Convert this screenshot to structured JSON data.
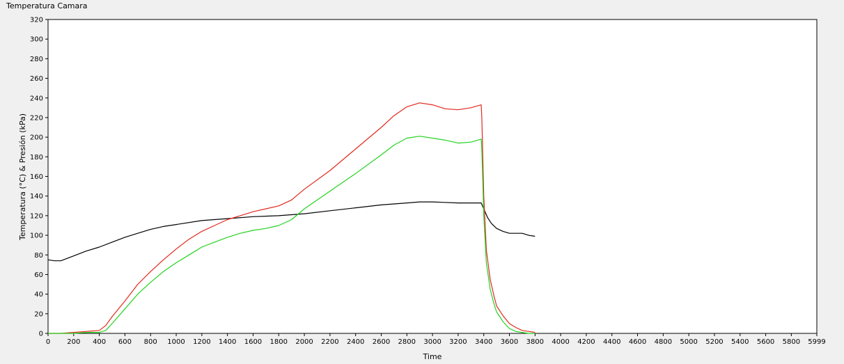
{
  "chart_data": {
    "type": "line",
    "title": "Temperatura Camara",
    "xlabel": "Time",
    "ylabel": "Temperatura (°C) & Presión (kPa)",
    "xlim": [
      0,
      5999
    ],
    "ylim": [
      0,
      320
    ],
    "xticks": [
      "0",
      "200",
      "400",
      "600",
      "800",
      "1000",
      "1200",
      "1400",
      "1600",
      "1800",
      "2000",
      "2200",
      "2400",
      "2600",
      "2800",
      "3000",
      "3200",
      "3400",
      "3600",
      "3800",
      "4000",
      "4200",
      "4400",
      "4600",
      "4800",
      "5000",
      "5200",
      "5400",
      "5600",
      "5800",
      "5999"
    ],
    "yticks": [
      "0",
      "20",
      "40",
      "60",
      "80",
      "100",
      "120",
      "140",
      "160",
      "180",
      "200",
      "220",
      "240",
      "260",
      "280",
      "300",
      "320"
    ],
    "grid": false,
    "legend": "none",
    "series": [
      {
        "color": "#000000",
        "x": [
          0,
          50,
          100,
          200,
          300,
          400,
          500,
          600,
          700,
          800,
          900,
          1000,
          1200,
          1400,
          1600,
          1800,
          2000,
          2200,
          2400,
          2600,
          2800,
          2900,
          3000,
          3200,
          3380,
          3400,
          3430,
          3460,
          3500,
          3550,
          3600,
          3650,
          3700,
          3750,
          3800
        ],
        "y": [
          75,
          74,
          74,
          79,
          84,
          88,
          93,
          98,
          102,
          106,
          109,
          111,
          115,
          117,
          119,
          120,
          122,
          125,
          128,
          131,
          133,
          134,
          134,
          133,
          133,
          127,
          118,
          112,
          107,
          104,
          102,
          102,
          102,
          100,
          99
        ]
      },
      {
        "color": "#e0281e",
        "x": [
          0,
          100,
          200,
          300,
          400,
          450,
          500,
          600,
          700,
          800,
          900,
          1000,
          1100,
          1200,
          1300,
          1400,
          1500,
          1600,
          1700,
          1800,
          1900,
          2000,
          2200,
          2400,
          2600,
          2700,
          2800,
          2900,
          3000,
          3100,
          3200,
          3300,
          3380,
          3385,
          3400,
          3420,
          3450,
          3480,
          3500,
          3550,
          3600,
          3650,
          3700,
          3750,
          3800
        ],
        "y": [
          0,
          0,
          1,
          2,
          3,
          8,
          17,
          33,
          50,
          63,
          75,
          86,
          96,
          104,
          110,
          116,
          120,
          124,
          127,
          130,
          136,
          147,
          166,
          188,
          210,
          222,
          231,
          235,
          233,
          229,
          228,
          230,
          233,
          220,
          140,
          85,
          55,
          38,
          28,
          18,
          10,
          6,
          3,
          2,
          1
        ]
      },
      {
        "color": "#22d21e",
        "x": [
          0,
          100,
          200,
          300,
          400,
          450,
          500,
          600,
          700,
          800,
          900,
          1000,
          1100,
          1200,
          1300,
          1400,
          1500,
          1600,
          1700,
          1800,
          1900,
          2000,
          2200,
          2400,
          2600,
          2700,
          2800,
          2900,
          3000,
          3100,
          3200,
          3300,
          3380,
          3385,
          3400,
          3420,
          3450,
          3480,
          3500,
          3550,
          3600,
          3650,
          3700,
          3750,
          3800
        ],
        "y": [
          0,
          0,
          0,
          1,
          1,
          3,
          10,
          25,
          40,
          52,
          63,
          72,
          80,
          88,
          93,
          98,
          102,
          105,
          107,
          110,
          116,
          127,
          145,
          163,
          182,
          192,
          199,
          201,
          199,
          197,
          194,
          195,
          198,
          188,
          120,
          72,
          45,
          30,
          22,
          12,
          5,
          2,
          1,
          0,
          0
        ]
      }
    ]
  }
}
